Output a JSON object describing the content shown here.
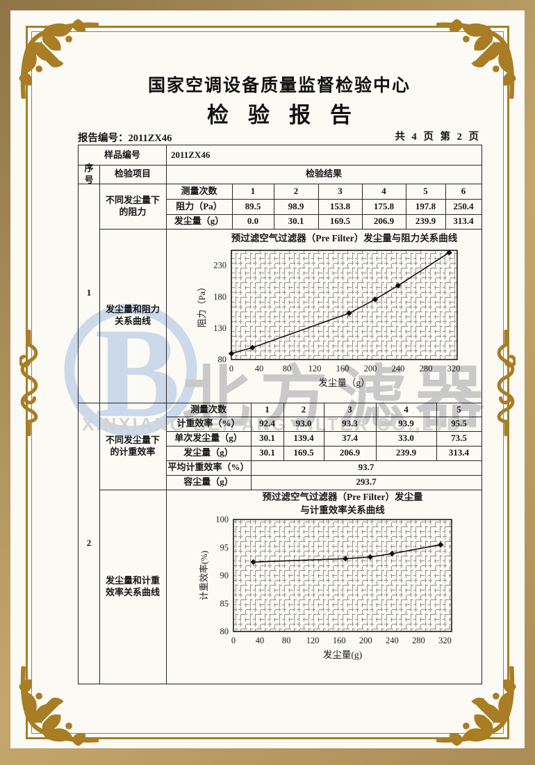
{
  "header": {
    "center_name": "国家空调设备质量监督检验中心",
    "report_title": "检验报告",
    "report_no": "报告编号：2011ZX46",
    "page_info": "共 4 页 第 2 页"
  },
  "table": {
    "sample_label": "样品编号",
    "sample_value": "2011ZX46",
    "col_seq": "序号",
    "col_item": "检验项目",
    "col_result": "检验结果"
  },
  "s1": {
    "seq": "1",
    "item_table": "不同发尘量下的阻力",
    "item_chart": "发尘量和阻力关系曲线",
    "rows": {
      "h": [
        "测量次数",
        "1",
        "2",
        "3",
        "4",
        "5",
        "6"
      ],
      "r1": [
        "阻力（Pa）",
        "89.5",
        "98.9",
        "153.8",
        "175.8",
        "197.8",
        "250.4"
      ],
      "r2": [
        "发尘量（g）",
        "0.0",
        "30.1",
        "169.5",
        "206.9",
        "239.9",
        "313.4"
      ]
    }
  },
  "s2": {
    "seq": "2",
    "item_table": "不同发尘量下的计重效率",
    "item_chart": "发尘量和计重效率关系曲线",
    "rows": {
      "h": [
        "测量次数",
        "1",
        "2",
        "3",
        "4",
        "5"
      ],
      "r1": [
        "计重效率（%）",
        "92.4",
        "93.0",
        "93.3",
        "93.9",
        "95.5"
      ],
      "r2": [
        "单次发尘量（g）",
        "30.1",
        "139.4",
        "37.4",
        "33.0",
        "73.5"
      ],
      "r3": [
        "发尘量（g）",
        "30.1",
        "169.5",
        "206.9",
        "239.9",
        "313.4"
      ],
      "avg_label": "平均计重效率（%）",
      "avg_value": "93.7",
      "cap_label": "容尘量（g）",
      "cap_value": "293.7"
    }
  },
  "watermark": {
    "logo_letter": "B",
    "cn": "北方滤器",
    "en": "XINXIANG BEIFANG FILTER CO.,LTD"
  },
  "chart_data": [
    {
      "type": "line",
      "title": "预过滤空气过滤器（Pre Filter）发尘量与阻力关系曲线",
      "title_lines": [
        "预过滤空气过滤器（Pre Filter）发尘量与阻力关系曲线"
      ],
      "xlabel": "发尘量（g）",
      "ylabel": "阻力（Pa）",
      "x": [
        0,
        30.1,
        169.5,
        206.9,
        239.9,
        313.4
      ],
      "y": [
        89.5,
        98.9,
        153.8,
        175.8,
        197.8,
        250.4
      ],
      "xlim": [
        0,
        325
      ],
      "ylim": [
        80,
        254
      ],
      "xticks": [
        0,
        40,
        80,
        120,
        160,
        200,
        240,
        280,
        320
      ],
      "yticks": [
        80,
        130,
        180,
        230
      ],
      "grid": true,
      "marker": "diamond",
      "legend_position": "none"
    },
    {
      "type": "line",
      "title": "预过滤空气过滤器（Pre Filter）发尘量 与计重效率关系曲线",
      "title_lines": [
        "预过滤空气过滤器（Pre Filter）发尘量",
        "与计重效率关系曲线"
      ],
      "xlabel": "发尘量(g)",
      "ylabel": "计重效率(%)",
      "x": [
        30.1,
        169.5,
        206.9,
        239.9,
        313.4
      ],
      "y": [
        92.4,
        93.0,
        93.3,
        93.9,
        95.5
      ],
      "xlim": [
        0,
        330
      ],
      "ylim": [
        80,
        100
      ],
      "xticks": [
        0,
        40,
        80,
        120,
        160,
        200,
        240,
        280,
        320
      ],
      "yticks": [
        80,
        85,
        90,
        95,
        100
      ],
      "grid": true,
      "marker": "diamond",
      "legend_position": "none"
    }
  ],
  "colors": {
    "frame_gold": "#a87d24",
    "band_tan": "#b39760",
    "watermark_gray": "#c9c9c9",
    "watermark_blue": "#ccd9ea",
    "ink": "#1a1a1a"
  }
}
